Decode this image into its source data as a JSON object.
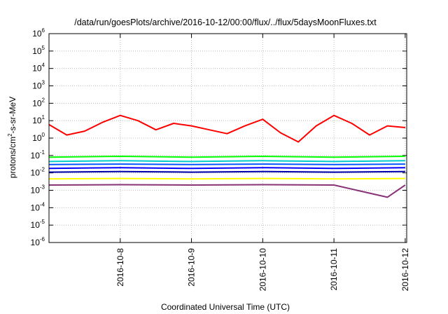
{
  "chart_data": {
    "type": "line",
    "title": "/data/run/goesPlots/archive/2016-10-12/00:00/flux/../flux/5daysMoonFluxes.txt",
    "xlabel": "Coordinated Universal Time (UTC)",
    "ylabel": "protons/cm²-s-sr-MeV",
    "ylabel_parts": [
      "protons/cm",
      "2",
      "-s-sr-MeV"
    ],
    "yscale": "log",
    "ylim_exponents": [
      -6,
      6
    ],
    "y_ticks": [
      {
        "base": "10",
        "exp": "6"
      },
      {
        "base": "10",
        "exp": "5"
      },
      {
        "base": "10",
        "exp": "4"
      },
      {
        "base": "10",
        "exp": "3"
      },
      {
        "base": "10",
        "exp": "2"
      },
      {
        "base": "10",
        "exp": "1"
      },
      {
        "base": "10",
        "exp": "0"
      },
      {
        "base": "10",
        "exp": "-1"
      },
      {
        "base": "10",
        "exp": "-2"
      },
      {
        "base": "10",
        "exp": "-3"
      },
      {
        "base": "10",
        "exp": "-4"
      },
      {
        "base": "10",
        "exp": "-5"
      },
      {
        "base": "10",
        "exp": "-6"
      }
    ],
    "xlim": [
      "2016-10-07 00:00",
      "2016-10-12 00:30"
    ],
    "x_ticks": [
      "2016-10-8",
      "2016-10-9",
      "2016-10-10",
      "2016-10-11",
      "2016-10-12"
    ],
    "grid": true,
    "legend": "none",
    "series": [
      {
        "color": "#ff0000",
        "x": [
          "2016-10-07 00:00",
          "2016-10-07 06:00",
          "2016-10-07 12:00",
          "2016-10-07 18:00",
          "2016-10-08 00:00",
          "2016-10-08 06:00",
          "2016-10-08 12:00",
          "2016-10-08 18:00",
          "2016-10-09 00:00",
          "2016-10-09 06:00",
          "2016-10-09 12:00",
          "2016-10-09 18:00",
          "2016-10-10 00:00",
          "2016-10-10 06:00",
          "2016-10-10 12:00",
          "2016-10-10 18:00",
          "2016-10-11 00:00",
          "2016-10-11 06:00",
          "2016-10-11 12:00",
          "2016-10-11 18:00",
          "2016-10-12 00:00"
        ],
        "values": [
          6,
          1.5,
          2.5,
          8,
          20,
          10,
          3,
          7,
          5,
          3,
          1.8,
          5,
          12,
          2,
          0.6,
          5,
          20,
          7,
          1.5,
          5,
          4
        ]
      },
      {
        "color": "#00ff00",
        "x": [
          "2016-10-07 00:00",
          "2016-10-08 00:00",
          "2016-10-09 00:00",
          "2016-10-10 00:00",
          "2016-10-11 00:00",
          "2016-10-12 00:00"
        ],
        "values": [
          0.08,
          0.09,
          0.08,
          0.09,
          0.08,
          0.09
        ]
      },
      {
        "color": "#00cccc",
        "x": [
          "2016-10-07 00:00",
          "2016-10-08 00:00",
          "2016-10-09 00:00",
          "2016-10-10 00:00",
          "2016-10-11 00:00",
          "2016-10-12 00:00"
        ],
        "values": [
          0.045,
          0.05,
          0.045,
          0.05,
          0.045,
          0.05
        ]
      },
      {
        "color": "#0055ff",
        "x": [
          "2016-10-07 00:00",
          "2016-10-08 00:00",
          "2016-10-09 00:00",
          "2016-10-10 00:00",
          "2016-10-11 00:00",
          "2016-10-12 00:00"
        ],
        "values": [
          0.03,
          0.032,
          0.03,
          0.032,
          0.03,
          0.032
        ]
      },
      {
        "color": "#0000ff",
        "x": [
          "2016-10-07 00:00",
          "2016-10-08 00:00",
          "2016-10-09 00:00",
          "2016-10-10 00:00",
          "2016-10-11 00:00",
          "2016-10-12 00:00"
        ],
        "values": [
          0.018,
          0.02,
          0.018,
          0.02,
          0.018,
          0.02
        ]
      },
      {
        "color": "#0000aa",
        "x": [
          "2016-10-07 00:00",
          "2016-10-08 00:00",
          "2016-10-09 00:00",
          "2016-10-10 00:00",
          "2016-10-11 00:00",
          "2016-10-12 00:00"
        ],
        "values": [
          0.011,
          0.012,
          0.011,
          0.012,
          0.011,
          0.012
        ]
      },
      {
        "color": "#ffff00",
        "x": [
          "2016-10-07 00:00",
          "2016-10-08 00:00",
          "2016-10-09 00:00",
          "2016-10-10 00:00",
          "2016-10-11 00:00",
          "2016-10-12 00:00"
        ],
        "values": [
          0.0045,
          0.0048,
          0.0045,
          0.0048,
          0.0045,
          0.0048
        ]
      },
      {
        "color": "#883377",
        "x": [
          "2016-10-07 00:00",
          "2016-10-08 00:00",
          "2016-10-09 00:00",
          "2016-10-10 00:00",
          "2016-10-11 00:00",
          "2016-10-11 18:00",
          "2016-10-12 00:00"
        ],
        "values": [
          0.002,
          0.0021,
          0.002,
          0.0021,
          0.002,
          0.0004,
          0.002
        ]
      }
    ]
  }
}
